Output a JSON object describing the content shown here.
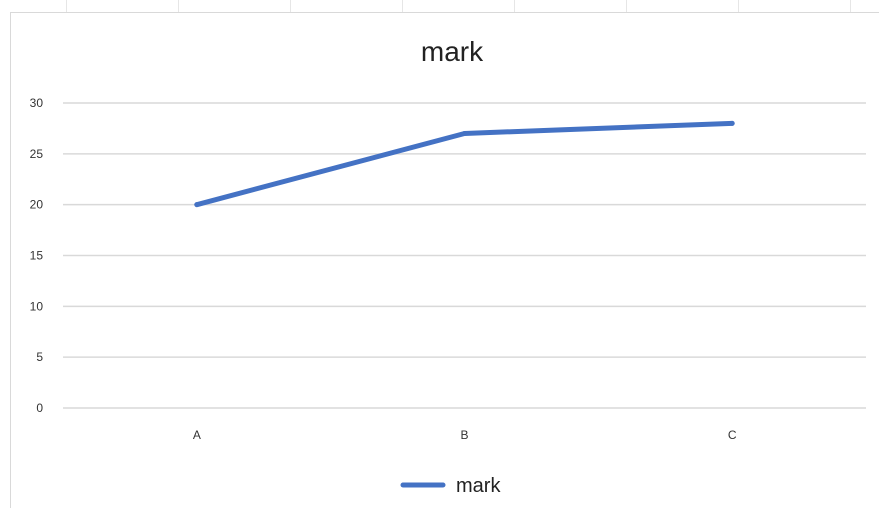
{
  "chart_data": {
    "type": "line",
    "title": "mark",
    "xlabel": "",
    "ylabel": "",
    "categories": [
      "A",
      "B",
      "C"
    ],
    "series": [
      {
        "name": "mark",
        "values": [
          20,
          27,
          28
        ],
        "color": "#4472C4"
      }
    ],
    "ylim": [
      0,
      30
    ],
    "yticks": [
      "0",
      "5",
      "10",
      "15",
      "20",
      "25",
      "30"
    ],
    "grid": true,
    "legend": "bottom"
  },
  "colors": {
    "gridline": "#d9d9d9",
    "series": "#4472C4"
  }
}
